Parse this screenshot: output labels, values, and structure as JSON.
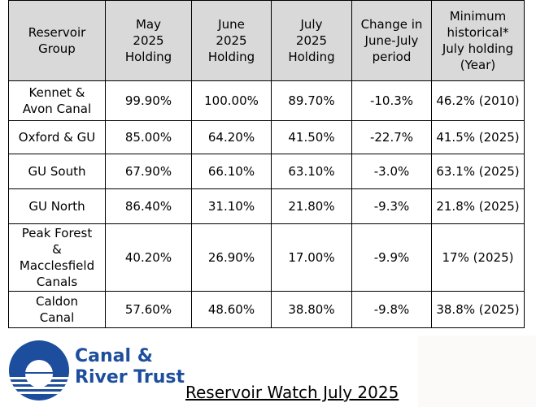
{
  "table": {
    "headers": [
      "Reservoir\nGroup",
      "May\n2025\nHolding",
      "June\n2025\nHolding",
      "July\n2025\nHolding",
      "Change in\nJune-July\nperiod",
      "Minimum\nhistorical*\nJuly holding\n(Year)"
    ],
    "rows": [
      [
        "Kennet &\nAvon Canal",
        "99.90%",
        "100.00%",
        "89.70%",
        "-10.3%",
        "46.2% (2010)"
      ],
      [
        "Oxford & GU",
        "85.00%",
        "64.20%",
        "41.50%",
        "-22.7%",
        "41.5% (2025)"
      ],
      [
        "GU South",
        "67.90%",
        "66.10%",
        "63.10%",
        "-3.0%",
        "63.1% (2025)"
      ],
      [
        "GU North",
        "86.40%",
        "31.10%",
        "21.80%",
        "-9.3%",
        "21.8% (2025)"
      ],
      [
        "Peak Forest\n&\nMacclesfield\nCanals",
        "40.20%",
        "26.90%",
        "17.00%",
        "-9.9%",
        "17% (2025)"
      ],
      [
        "Caldon\nCanal",
        "57.60%",
        "48.60%",
        "38.80%",
        "-9.8%",
        "38.8% (2025)"
      ]
    ]
  },
  "footer": {
    "brand_line1": "Canal &",
    "brand_line2": "River Trust",
    "logo_icon": "canal-river-trust-logo-icon",
    "brand_color": "#1d4e9e",
    "title": "Reservoir Watch July 2025"
  }
}
